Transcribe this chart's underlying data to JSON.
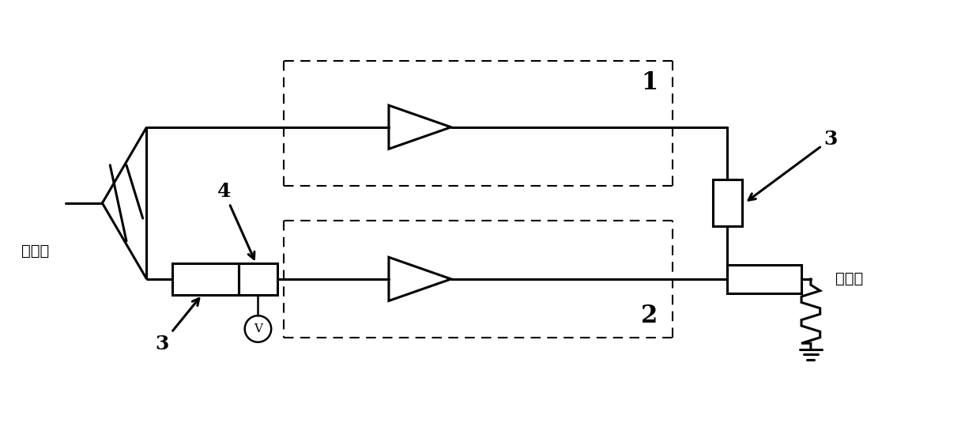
{
  "bg_color": "#ffffff",
  "line_color": "#000000",
  "text_color": "#000000",
  "label_1": "1",
  "label_2": "2",
  "label_3_top": "3",
  "label_3_bottom": "3",
  "label_4": "4",
  "label_V": "V",
  "label_input": "总输入",
  "label_output": "总输出",
  "figsize": [
    12.4,
    5.59
  ],
  "dpi": 100
}
